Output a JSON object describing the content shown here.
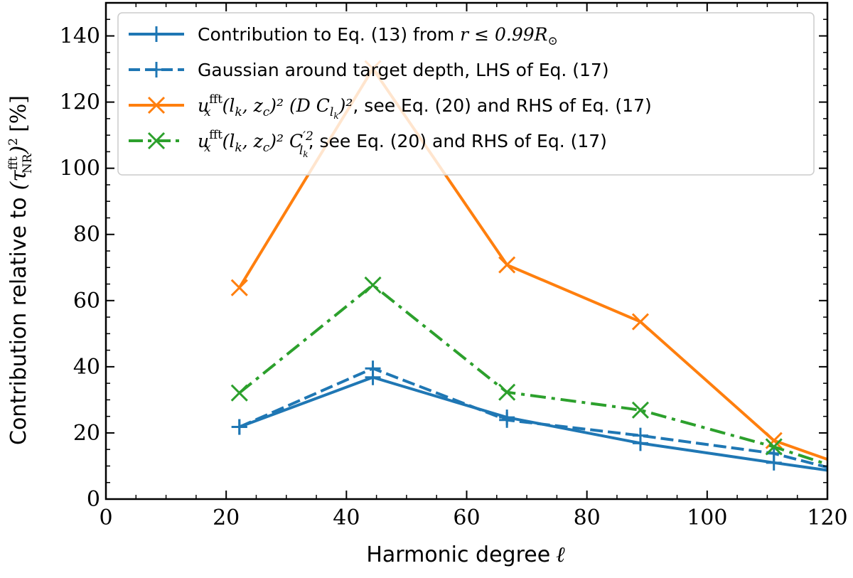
{
  "chart_data": {
    "type": "line",
    "xlabel": "Harmonic degree",
    "xlabel_symbol": "ℓ",
    "ylabel": "Contribution relative to",
    "ylabel_math": "(τ",
    "ylabel_super": "fft",
    "ylabel_sub": "NR",
    "ylabel_tail": ")",
    "ylabel_power": "2",
    "ylabel_unit": "[%]",
    "xlim": [
      0,
      120
    ],
    "ylim": [
      0,
      150
    ],
    "xticks": [
      0,
      20,
      40,
      60,
      80,
      100,
      120
    ],
    "yticks": [
      0,
      20,
      40,
      60,
      80,
      100,
      120,
      140
    ],
    "xtick_labels": [
      "0",
      "20",
      "40",
      "60",
      "80",
      "100",
      "120"
    ],
    "ytick_labels": [
      "0",
      "20",
      "40",
      "60",
      "80",
      "100",
      "120",
      "140"
    ],
    "legend_position": "top-right",
    "series": [
      {
        "name": "Contribution to Eq. (13) from r ≤ 0.99R⊙",
        "legend_prefix": "Contribution to Eq. (13) from ",
        "legend_math": "r ≤ 0.99R",
        "legend_math_tail": "⊙",
        "color": "#1f77b4",
        "linestyle": "solid",
        "marker": "+",
        "x": [
          22.2,
          44.4,
          66.7,
          88.9,
          111.1,
          120
        ],
        "y": [
          21.8,
          36.8,
          24.7,
          16.9,
          11.0,
          8.7
        ],
        "marker_count": 5
      },
      {
        "name": "Gaussian around target depth, LHS of Eq. (17)",
        "legend_prefix": "Gaussian around target depth, LHS of Eq. (17)",
        "color": "#1f77b4",
        "linestyle": "dashed",
        "marker": "+",
        "x": [
          22.2,
          44.4,
          66.7,
          88.9,
          111.1,
          120
        ],
        "y": [
          21.8,
          39.5,
          23.9,
          19.2,
          13.8,
          9.6
        ],
        "marker_count": 5
      },
      {
        "name": "u_x^fft(l_k, z_c)^2 (D C_lk)^2, see Eq. (20) and RHS of Eq. (17)",
        "legend_math": "u",
        "legend_math_sub": "x",
        "legend_math_sup": "fft",
        "legend_math_body": "(l",
        "legend_math_body_sub": "k",
        "legend_math_body2": ", z",
        "legend_math_body2_sub": "c",
        "legend_math_body3": ")² (D C",
        "legend_math_body3_sub": "l",
        "legend_math_body3_subsub": "k",
        "legend_math_body4": ")²",
        "legend_suffix": ", see Eq. (20) and RHS of Eq. (17)",
        "color": "#ff7f0e",
        "linestyle": "solid",
        "marker": "x",
        "x": [
          22.2,
          44.4,
          66.7,
          88.9,
          111.1,
          120
        ],
        "y": [
          63.9,
          130.1,
          70.8,
          53.6,
          17.7,
          12.0
        ],
        "marker_count": 5
      },
      {
        "name": "u_x^fft(l_k, z_c)^2 C'^2_lk, see Eq. (20) and RHS of Eq. (17)",
        "legend_math": "u",
        "legend_math_sub": "x",
        "legend_math_sup": "fft",
        "legend_math_body": "(l",
        "legend_math_body_sub": "k",
        "legend_math_body2": ", z",
        "legend_math_body2_sub": "c",
        "legend_math_body3": ")² C",
        "legend_math_body3_sup": "′2",
        "legend_math_body3_sub": "l",
        "legend_math_body3_subsub": "k",
        "legend_suffix": ", see Eq. (20) and RHS of Eq. (17)",
        "color": "#2ca02c",
        "linestyle": "dashdot",
        "marker": "x",
        "x": [
          22.2,
          44.4,
          66.7,
          88.9,
          111.1,
          120
        ],
        "y": [
          32.1,
          64.7,
          32.3,
          26.9,
          15.8,
          10.5
        ],
        "marker_count": 5
      }
    ]
  }
}
